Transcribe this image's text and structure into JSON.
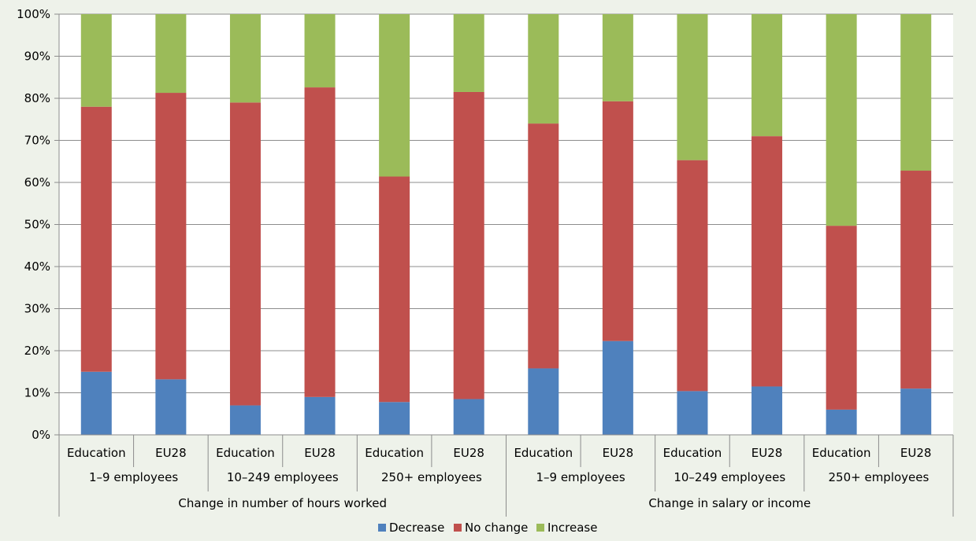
{
  "chart_data": {
    "type": "bar",
    "stacked": "percent",
    "ylim": [
      0,
      100
    ],
    "y_ticks": [
      "0%",
      "10%",
      "20%",
      "30%",
      "40%",
      "50%",
      "60%",
      "70%",
      "80%",
      "90%",
      "100%"
    ],
    "grid": true,
    "legend_position": "bottom",
    "categories": [
      "Education",
      "EU28",
      "Education",
      "EU28",
      "Education",
      "EU28",
      "Education",
      "EU28",
      "Education",
      "EU28",
      "Education",
      "EU28"
    ],
    "size_groups": [
      "1–9 employees",
      "10–249 employees",
      "250+ employees",
      "1–9 employees",
      "10–249 employees",
      "250+ employees"
    ],
    "measure_groups": [
      "Change in number of hours worked",
      "Change in salary or income"
    ],
    "series": [
      {
        "name": "Decrease",
        "color": "#4f81bd",
        "values": [
          15,
          13.2,
          7,
          9,
          7.8,
          8.5,
          15.8,
          22.3,
          10.4,
          11.5,
          6,
          11
        ]
      },
      {
        "name": "No change",
        "color": "#c0504d",
        "values": [
          63,
          68.1,
          72,
          73.6,
          53.6,
          73,
          58.2,
          57,
          54.9,
          59.5,
          43.7,
          51.8
        ]
      },
      {
        "name": "Increase",
        "color": "#9bbb59",
        "values": [
          22,
          18.7,
          21,
          17.4,
          38.6,
          18.5,
          26,
          20.7,
          34.7,
          29,
          50.3,
          37.2
        ]
      }
    ]
  }
}
